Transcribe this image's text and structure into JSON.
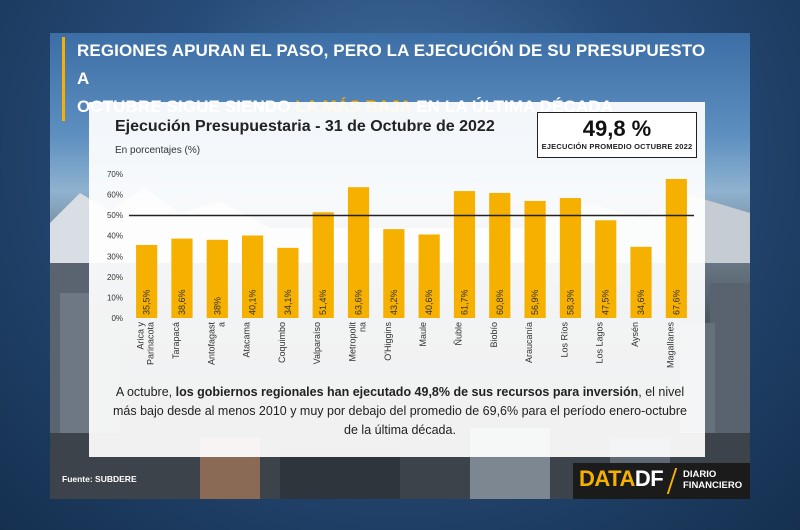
{
  "headline": {
    "line1": "REGIONES APURAN EL PASO, PERO LA EJECUCIÓN DE SU PRESUPUESTO A",
    "line2_pre": "OCTUBRE SIGUE SIENDO ",
    "line2_highlight": "LA MÁS BAJA",
    "line2_post": " EN LA ÚLTIMA DÉCADA"
  },
  "summary": {
    "value": "49,8 %",
    "label": "EJECUCIÓN PROMEDIO OCTUBRE 2022"
  },
  "footnote": {
    "pre": "A octubre, ",
    "bold": "los gobiernos regionales han ejecutado 49,8% de sus recursos para inversión",
    "post": ", el nivel más bajo desde al menos 2010 y muy por debajo del promedio de 69,6% para el período enero-octubre de la última década."
  },
  "source": "Fuente: SUBDERE",
  "logo": {
    "data": "DATA",
    "df": "DF",
    "diario": "DIARIO",
    "financiero": "FINANCIERO"
  },
  "colors": {
    "bar": "#f5b000",
    "highlight": "#f5b000",
    "avg_line": "#222222"
  },
  "chart_data": {
    "type": "bar",
    "title": "Ejecución Presupuestaria - 31 de Octubre de 2022",
    "ylabel": "En porcentajes (%)",
    "ylim": [
      0,
      70
    ],
    "yticks": [
      "0%",
      "10%",
      "20%",
      "30%",
      "40%",
      "50%",
      "60%",
      "70%"
    ],
    "ytick_values": [
      0,
      10,
      20,
      30,
      40,
      50,
      60,
      70
    ],
    "categories": [
      [
        "Arica y",
        "Parinacota"
      ],
      [
        "Tarapacá"
      ],
      [
        "Antofagast",
        "a"
      ],
      [
        "Atacama"
      ],
      [
        "Coquimbo"
      ],
      [
        "Valparaíso"
      ],
      [
        "Metropolit",
        "na"
      ],
      [
        "O'Higgins"
      ],
      [
        "Maule"
      ],
      [
        "Ñuble"
      ],
      [
        "Biobío"
      ],
      [
        "Araucanía"
      ],
      [
        "Los Ríos"
      ],
      [
        "Los Lagos"
      ],
      [
        "Aysén"
      ],
      [
        "Magallanes"
      ]
    ],
    "values": [
      35.5,
      38.6,
      38,
      40.1,
      34.1,
      51.4,
      63.6,
      43.2,
      40.6,
      61.7,
      60.8,
      56.9,
      58.3,
      47.5,
      34.6,
      67.6
    ],
    "value_labels": [
      "35,5%",
      "38,6%",
      "38%",
      "40,1%",
      "34,1%",
      "51,4%",
      "63,6%",
      "43,2%",
      "40,6%",
      "61,7%",
      "60,8%",
      "56,9%",
      "58,3%",
      "47,5%",
      "34,6%",
      "67,6%"
    ],
    "reference_line": 49.8
  }
}
